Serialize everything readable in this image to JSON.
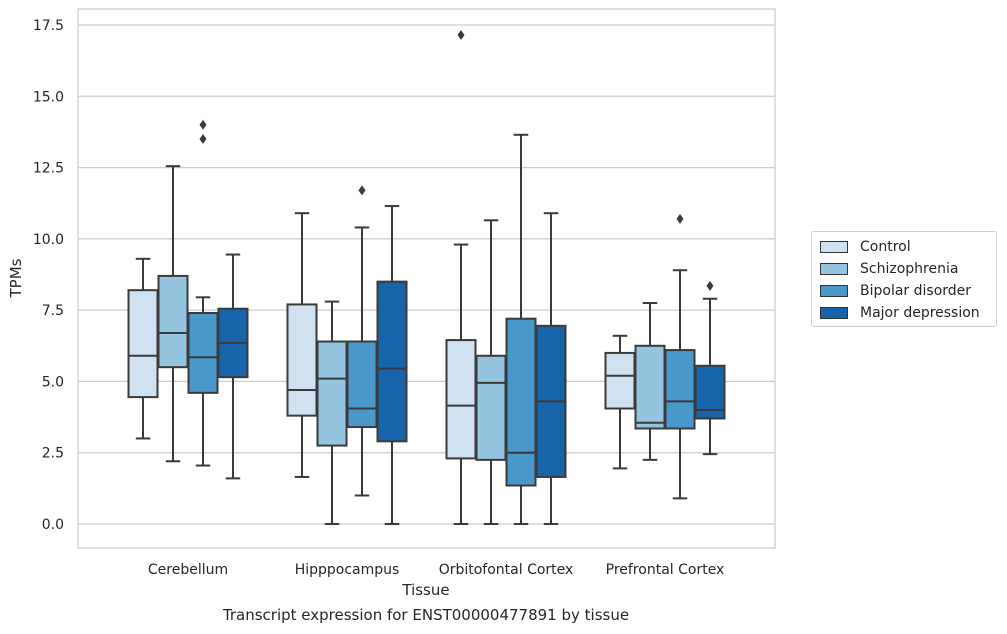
{
  "chart_data": {
    "type": "box",
    "title": "",
    "xlabel": "Tissue",
    "ylabel": "TPMs",
    "caption": "Transcript expression for ENST00000477891 by tissue",
    "ylim": [
      -0.85,
      18.1
    ],
    "yticks": [
      0.0,
      2.5,
      5.0,
      7.5,
      10.0,
      12.5,
      15.0,
      17.5
    ],
    "ytick_labels": [
      "0.0",
      "2.5",
      "5.0",
      "7.5",
      "10.0",
      "12.5",
      "15.0",
      "17.5"
    ],
    "grid": true,
    "legend_position": "right",
    "categories": [
      "Cerebellum",
      "Hipppocampus",
      "Orbitofontal Cortex",
      "Prefrontal Cortex"
    ],
    "series": [
      {
        "name": "Control",
        "color": "#d0e1f2",
        "boxes": [
          {
            "whislo": 3.0,
            "q1": 4.45,
            "med": 5.9,
            "q3": 8.2,
            "whishi": 9.3,
            "fliers": []
          },
          {
            "whislo": 1.65,
            "q1": 3.8,
            "med": 4.7,
            "q3": 7.7,
            "whishi": 10.9,
            "fliers": []
          },
          {
            "whislo": 0.0,
            "q1": 2.3,
            "med": 4.15,
            "q3": 6.45,
            "whishi": 9.8,
            "fliers": [
              17.15
            ]
          },
          {
            "whislo": 1.95,
            "q1": 4.05,
            "med": 5.2,
            "q3": 6.0,
            "whishi": 6.6,
            "fliers": []
          }
        ]
      },
      {
        "name": "Schizophrenia",
        "color": "#94c4df",
        "boxes": [
          {
            "whislo": 2.2,
            "q1": 5.5,
            "med": 6.7,
            "q3": 8.7,
            "whishi": 12.55,
            "fliers": []
          },
          {
            "whislo": 0.0,
            "q1": 2.75,
            "med": 5.1,
            "q3": 6.4,
            "whishi": 7.8,
            "fliers": []
          },
          {
            "whislo": 0.0,
            "q1": 2.25,
            "med": 4.95,
            "q3": 5.9,
            "whishi": 10.65,
            "fliers": []
          },
          {
            "whislo": 2.25,
            "q1": 3.35,
            "med": 3.55,
            "q3": 6.25,
            "whishi": 7.75,
            "fliers": []
          }
        ]
      },
      {
        "name": "Bipolar disorder",
        "color": "#4a98c9",
        "boxes": [
          {
            "whislo": 2.05,
            "q1": 4.6,
            "med": 5.85,
            "q3": 7.4,
            "whishi": 7.95,
            "fliers": [
              13.5,
              14.0
            ]
          },
          {
            "whislo": 1.0,
            "q1": 3.4,
            "med": 4.05,
            "q3": 6.4,
            "whishi": 10.4,
            "fliers": [
              11.7
            ]
          },
          {
            "whislo": 0.0,
            "q1": 1.35,
            "med": 2.5,
            "q3": 7.2,
            "whishi": 13.65,
            "fliers": []
          },
          {
            "whislo": 0.9,
            "q1": 3.35,
            "med": 4.3,
            "q3": 6.1,
            "whishi": 8.9,
            "fliers": [
              10.7
            ]
          }
        ]
      },
      {
        "name": "Major depression",
        "color": "#1764ab",
        "boxes": [
          {
            "whislo": 1.6,
            "q1": 5.15,
            "med": 6.35,
            "q3": 7.55,
            "whishi": 9.45,
            "fliers": []
          },
          {
            "whislo": 0.0,
            "q1": 2.9,
            "med": 5.45,
            "q3": 8.5,
            "whishi": 11.15,
            "fliers": []
          },
          {
            "whislo": 0.0,
            "q1": 1.65,
            "med": 4.3,
            "q3": 6.95,
            "whishi": 10.9,
            "fliers": []
          },
          {
            "whislo": 2.45,
            "q1": 3.7,
            "med": 4.0,
            "q3": 5.55,
            "whishi": 7.9,
            "fliers": [
              8.35
            ]
          }
        ]
      }
    ]
  }
}
